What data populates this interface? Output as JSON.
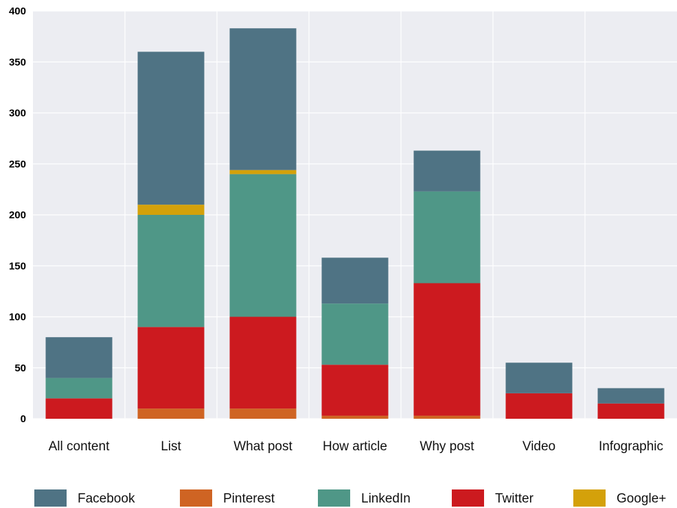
{
  "chart_data": {
    "type": "bar",
    "stacked": true,
    "categories": [
      "All content",
      "List",
      "What post",
      "How article",
      "Why post",
      "Video",
      "Infographic"
    ],
    "series": [
      {
        "name": "Pinterest",
        "color": "#cf6423",
        "values": [
          0,
          10,
          10,
          3,
          3,
          0,
          0
        ]
      },
      {
        "name": "Twitter",
        "color": "#cc1a1f",
        "values": [
          20,
          80,
          90,
          50,
          130,
          25,
          15
        ]
      },
      {
        "name": "LinkedIn",
        "color": "#4f9787",
        "values": [
          20,
          110,
          140,
          60,
          90,
          0,
          0
        ]
      },
      {
        "name": "Google+",
        "color": "#d4a10a",
        "values": [
          0,
          10,
          4,
          0,
          0,
          0,
          0
        ]
      },
      {
        "name": "Facebook",
        "color": "#4f7384",
        "values": [
          40,
          150,
          139,
          45,
          40,
          30,
          15
        ]
      }
    ],
    "legend_order": [
      "Facebook",
      "Pinterest",
      "LinkedIn",
      "Twitter",
      "Google+"
    ],
    "ylim": [
      0,
      400
    ],
    "yticks": [
      0,
      50,
      100,
      150,
      200,
      250,
      300,
      350,
      400
    ],
    "grid": true,
    "legend_position": "bottom",
    "plot_background": "#ecedf2"
  }
}
